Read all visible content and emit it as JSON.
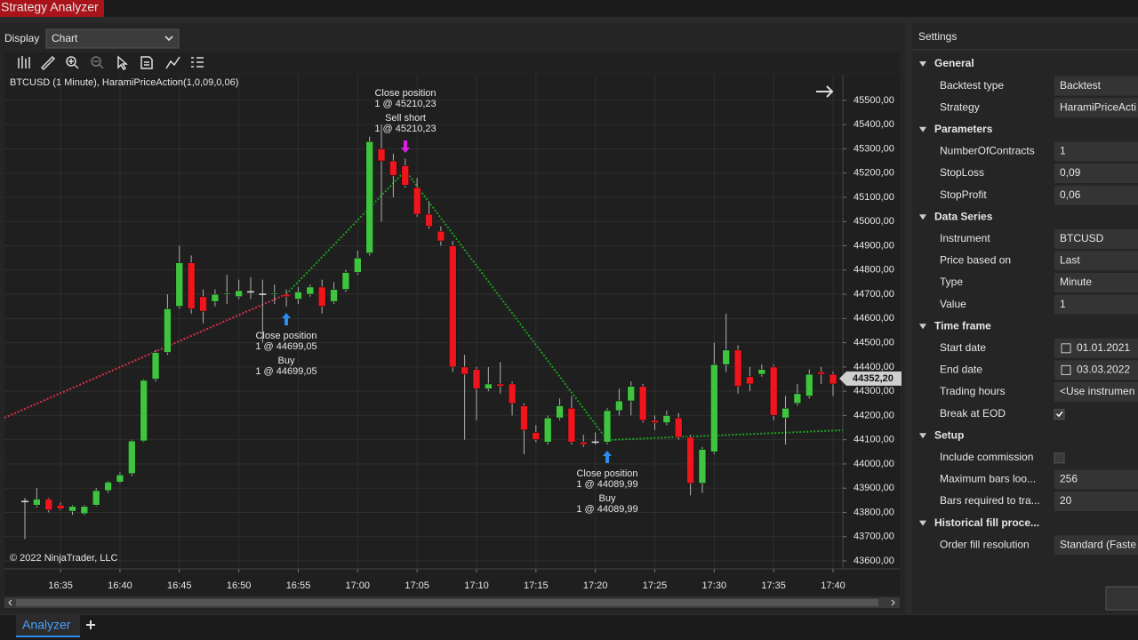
{
  "window_title": "Strategy Analyzer",
  "display": {
    "label": "Display",
    "value": "Chart"
  },
  "tabs": [
    "Analyzer"
  ],
  "chart_data": {
    "type": "candlestick",
    "title": "BTCUSD (1 Minute), HaramiPriceAction(1,0,09,0,06)",
    "copyright": "© 2022 NinjaTrader, LLC",
    "categories": [
      null,
      null,
      null,
      "16:35",
      null,
      null,
      null,
      null,
      "16:40",
      null,
      null,
      null,
      null,
      "16:45",
      null,
      null,
      null,
      null,
      "16:50",
      null,
      null,
      null,
      null,
      "16:55",
      null,
      null,
      null,
      null,
      "17:00",
      null,
      null,
      null,
      null,
      "17:05",
      null,
      null,
      null,
      null,
      "17:10",
      null,
      null,
      null,
      null,
      "17:15",
      null,
      null,
      null,
      null,
      "17:20",
      null,
      null,
      null,
      null,
      "17:25",
      null,
      null,
      null,
      null,
      "17:30",
      null,
      null,
      null,
      null,
      "17:35",
      null,
      null,
      null,
      null,
      "17:40"
    ],
    "open": [
      43845,
      43830,
      43855,
      43830,
      43805,
      43795,
      43830,
      43890,
      43925,
      43960,
      44095,
      44350,
      44460,
      44650,
      44830,
      44690,
      44670,
      44700,
      44690,
      44710,
      44700,
      44700,
      44700,
      44680,
      44700,
      44730,
      44670,
      44720,
      44790,
      44870,
      45300,
      45250,
      45230,
      45140,
      45030,
      44960,
      44900,
      44400,
      44390,
      44310,
      44330,
      44330,
      44240,
      44130,
      44090,
      44190,
      44230,
      44090,
      44090,
      44090,
      44220,
      44260,
      44320,
      44180,
      44170,
      44190,
      44110,
      43920,
      44050,
      44410,
      44470,
      44360,
      44370,
      44400,
      44190,
      44250,
      44280,
      44380,
      44370
    ],
    "high": [
      43860,
      43900,
      43860,
      43840,
      43830,
      43830,
      43900,
      43930,
      43965,
      44100,
      44350,
      44470,
      44700,
      44900,
      44860,
      44720,
      44720,
      44780,
      44760,
      44770,
      44760,
      44740,
      44720,
      44730,
      44740,
      44760,
      44750,
      44800,
      44880,
      45350,
      45400,
      45280,
      45260,
      45180,
      45080,
      44980,
      44920,
      44450,
      44400,
      44400,
      44420,
      44340,
      44250,
      44160,
      44200,
      44270,
      44280,
      44120,
      44130,
      44230,
      44310,
      44340,
      44330,
      44200,
      44220,
      44210,
      44120,
      44070,
      44500,
      44620,
      44490,
      44400,
      44410,
      44410,
      44280,
      44330,
      44390,
      44400,
      44380
    ],
    "low": [
      43690,
      43820,
      43800,
      43810,
      43790,
      43790,
      43825,
      43880,
      43920,
      43950,
      44090,
      44340,
      44450,
      44640,
      44620,
      44580,
      44650,
      44660,
      44680,
      44680,
      44500,
      44660,
      44650,
      44660,
      44690,
      44620,
      44660,
      44710,
      44780,
      44860,
      45000,
      45100,
      45140,
      45020,
      44970,
      44900,
      44380,
      44100,
      44180,
      44300,
      44290,
      44200,
      44040,
      44090,
      44080,
      44180,
      44080,
      44070,
      44080,
      44080,
      44200,
      44200,
      44170,
      44140,
      44160,
      44100,
      43870,
      43880,
      44040,
      44380,
      44290,
      44300,
      44360,
      44180,
      44080,
      44240,
      44270,
      44330,
      44280
    ],
    "close": [
      43845,
      43855,
      43810,
      43815,
      43825,
      43825,
      43890,
      43925,
      43955,
      44095,
      44345,
      44460,
      44640,
      44830,
      44640,
      44630,
      44700,
      44705,
      44715,
      44710,
      44700,
      44705,
      44690,
      44710,
      44730,
      44650,
      44720,
      44790,
      44850,
      45330,
      45250,
      45190,
      45150,
      45030,
      44980,
      44920,
      44400,
      44370,
      44310,
      44330,
      44320,
      44250,
      44140,
      44100,
      44190,
      44240,
      44090,
      44080,
      44090,
      44220,
      44260,
      44320,
      44180,
      44170,
      44200,
      44110,
      43920,
      44060,
      44410,
      44470,
      44320,
      44330,
      44390,
      44200,
      44230,
      44290,
      44370,
      44370,
      44330
    ],
    "up_color": "#3ec43e",
    "down_color": "#f0141c",
    "ylim": [
      43567,
      45606
    ],
    "yticks": [
      {
        "value": 43600,
        "label": "43600,00"
      },
      {
        "value": 43700,
        "label": "43700,00"
      },
      {
        "value": 43800,
        "label": "43800,00"
      },
      {
        "value": 43900,
        "label": "43900,00"
      },
      {
        "value": 44000,
        "label": "44000,00"
      },
      {
        "value": 44100,
        "label": "44100,00"
      },
      {
        "value": 44200,
        "label": "44200,00"
      },
      {
        "value": 44300,
        "label": "44300,00"
      },
      {
        "value": 44400,
        "label": "44400,00"
      },
      {
        "value": 44500,
        "label": "44500,00"
      },
      {
        "value": 44600,
        "label": "44600,00"
      },
      {
        "value": 44700,
        "label": "44700,00"
      },
      {
        "value": 44800,
        "label": "44800,00"
      },
      {
        "value": 44900,
        "label": "44900,00"
      },
      {
        "value": 45000,
        "label": "45000,00"
      },
      {
        "value": 45100,
        "label": "45100,00"
      },
      {
        "value": 45200,
        "label": "45200,00"
      },
      {
        "value": 45300,
        "label": "45300,00"
      },
      {
        "value": 45400,
        "label": "45400,00"
      },
      {
        "value": 45500,
        "label": "45500,00"
      }
    ],
    "grid": true,
    "last_price": {
      "value": 44352.2,
      "label": "44352,20"
    },
    "annotations": [
      {
        "lines": [
          "Close position",
          "1 @ 45210,23",
          "Sell short",
          "1 @ 45210,23"
        ]
      },
      {
        "lines": [
          "Close position",
          "1 @ 44699,05",
          "Buy",
          "1 @ 44699,05"
        ]
      },
      {
        "lines": [
          "Close position",
          "1 @ 44089,99",
          "Buy",
          "1 @ 44089,99"
        ]
      }
    ]
  },
  "settings": {
    "title": "Settings",
    "sections": [
      {
        "name": "General",
        "rows": [
          {
            "label": "Backtest type",
            "value": "Backtest"
          },
          {
            "label": "Strategy",
            "value": "HaramiPriceActi"
          }
        ]
      },
      {
        "name": "Parameters",
        "rows": [
          {
            "label": "NumberOfContracts",
            "value": "1"
          },
          {
            "label": "StopLoss",
            "value": "0,09"
          },
          {
            "label": "StopProfit",
            "value": "0,06"
          }
        ]
      },
      {
        "name": "Data Series",
        "rows": [
          {
            "label": "Instrument",
            "value": "BTCUSD"
          },
          {
            "label": "Price based on",
            "value": "Last"
          },
          {
            "label": "Type",
            "value": "Minute"
          },
          {
            "label": "Value",
            "value": "1"
          }
        ]
      },
      {
        "name": "Time frame",
        "rows": [
          {
            "label": "Start date",
            "value": "01.01.2021",
            "date": true
          },
          {
            "label": "End date",
            "value": "03.03.2022",
            "date": true
          },
          {
            "label": "Trading hours",
            "value": "<Use instrumen"
          },
          {
            "label": "Break at EOD",
            "checked": true
          }
        ]
      },
      {
        "name": "Setup",
        "rows": [
          {
            "label": "Include commission",
            "checked": false
          },
          {
            "label": "Maximum bars loo...",
            "value": "256"
          },
          {
            "label": "Bars required to tra...",
            "value": "20"
          }
        ]
      },
      {
        "name": "Historical fill proce...",
        "rows": [
          {
            "label": "Order fill resolution",
            "value": "Standard (Faste"
          }
        ]
      }
    ]
  }
}
